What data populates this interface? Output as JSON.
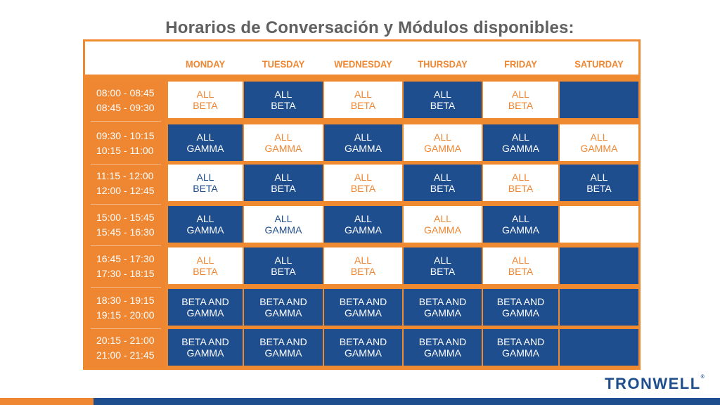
{
  "title": "Horarios de Conversación y Módulos disponibles:",
  "days": [
    "MONDAY",
    "TUESDAY",
    "WEDNESDAY",
    "THURSDAY",
    "FRIDAY",
    "SATURDAY"
  ],
  "time_slots": [
    [
      "08:00 - 08:45",
      "08:45 - 09:30"
    ],
    [
      "09:30 - 10:15",
      "10:15 - 11:00"
    ],
    [
      "11:15 - 12:00",
      "12:00 - 12:45"
    ],
    [
      "15:00 - 15:45",
      "15:45 - 16:30"
    ],
    [
      "16:45 - 17:30",
      "17:30 - 18:15"
    ],
    [
      "18:30 - 19:15",
      "19:15 - 20:00"
    ],
    [
      "20:15 - 21:00",
      "21:00 - 21:45"
    ]
  ],
  "schedule": [
    [
      {
        "l1": "ALL",
        "l2": "BETA",
        "style": "white"
      },
      {
        "l1": "ALL",
        "l2": "BETA",
        "style": "blue"
      },
      {
        "l1": "ALL",
        "l2": "BETA",
        "style": "white"
      },
      {
        "l1": "ALL",
        "l2": "BETA",
        "style": "blue"
      },
      {
        "l1": "ALL",
        "l2": "BETA",
        "style": "white"
      },
      {
        "l1": "",
        "l2": "",
        "style": "blue"
      }
    ],
    [
      {
        "l1": "ALL",
        "l2": "GAMMA",
        "style": "blue"
      },
      {
        "l1": "ALL",
        "l2": "GAMMA",
        "style": "white"
      },
      {
        "l1": "ALL",
        "l2": "GAMMA",
        "style": "blue"
      },
      {
        "l1": "ALL",
        "l2": "GAMMA",
        "style": "white"
      },
      {
        "l1": "ALL",
        "l2": "GAMMA",
        "style": "blue"
      },
      {
        "l1": "ALL",
        "l2": "GAMMA",
        "style": "white"
      }
    ],
    [
      {
        "l1": "ALL",
        "l2": "BETA",
        "style": "white-blue"
      },
      {
        "l1": "ALL",
        "l2": "BETA",
        "style": "blue"
      },
      {
        "l1": "ALL",
        "l2": "BETA",
        "style": "white"
      },
      {
        "l1": "ALL",
        "l2": "BETA",
        "style": "blue"
      },
      {
        "l1": "ALL",
        "l2": "BETA",
        "style": "white"
      },
      {
        "l1": "ALL",
        "l2": "BETA",
        "style": "blue"
      }
    ],
    [
      {
        "l1": "ALL",
        "l2": "GAMMA",
        "style": "blue"
      },
      {
        "l1": "ALL",
        "l2": "GAMMA",
        "style": "white-blue"
      },
      {
        "l1": "ALL",
        "l2": "GAMMA",
        "style": "blue"
      },
      {
        "l1": "ALL",
        "l2": "GAMMA",
        "style": "white"
      },
      {
        "l1": "ALL",
        "l2": "GAMMA",
        "style": "blue"
      },
      {
        "l1": "",
        "l2": "",
        "style": "white"
      }
    ],
    [
      {
        "l1": "ALL",
        "l2": "BETA",
        "style": "white"
      },
      {
        "l1": "ALL",
        "l2": "BETA",
        "style": "blue"
      },
      {
        "l1": "ALL",
        "l2": "BETA",
        "style": "white"
      },
      {
        "l1": "ALL",
        "l2": "BETA",
        "style": "blue"
      },
      {
        "l1": "ALL",
        "l2": "BETA",
        "style": "white"
      },
      {
        "l1": "",
        "l2": "",
        "style": "blue"
      }
    ],
    [
      {
        "l1": "BETA AND",
        "l2": "GAMMA",
        "style": "blue"
      },
      {
        "l1": "BETA AND",
        "l2": "GAMMA",
        "style": "blue"
      },
      {
        "l1": "BETA AND",
        "l2": "GAMMA",
        "style": "blue"
      },
      {
        "l1": "BETA AND",
        "l2": "GAMMA",
        "style": "blue"
      },
      {
        "l1": "BETA AND",
        "l2": "GAMMA",
        "style": "blue"
      },
      {
        "l1": "",
        "l2": "",
        "style": "blue"
      }
    ],
    [
      {
        "l1": "BETA AND",
        "l2": "GAMMA",
        "style": "blue"
      },
      {
        "l1": "BETA AND",
        "l2": "GAMMA",
        "style": "blue"
      },
      {
        "l1": "BETA AND",
        "l2": "GAMMA",
        "style": "blue"
      },
      {
        "l1": "BETA AND",
        "l2": "GAMMA",
        "style": "blue"
      },
      {
        "l1": "BETA AND",
        "l2": "GAMMA",
        "style": "blue"
      },
      {
        "l1": "",
        "l2": "",
        "style": "blue"
      }
    ]
  ],
  "logo": {
    "text": "TRONWELL",
    "mark": "®"
  },
  "colors": {
    "orange": "#ef8631",
    "navy": "#1f4e8f",
    "title_gray": "#606060"
  }
}
